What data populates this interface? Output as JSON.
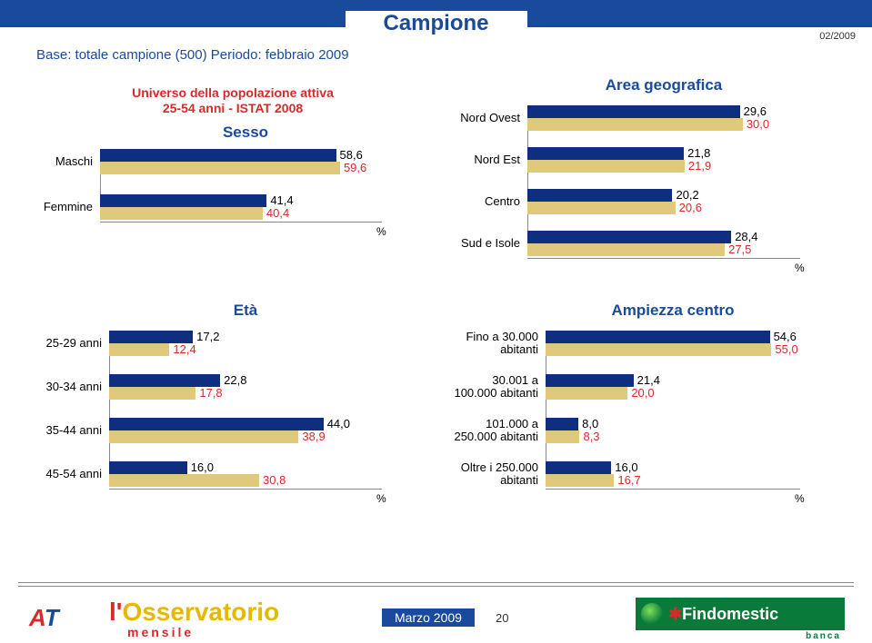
{
  "header": {
    "title": "Campione",
    "date": "02/2009",
    "base_note": "Base: totale campione (500) Periodo: febbraio 2009",
    "universo_line1": "Universo della popolazione attiva",
    "universo_line2": "25-54 anni - ISTAT 2008"
  },
  "colors": {
    "blue": "#1a4a9c",
    "red": "#d62b2b",
    "bar_primary": "#0e2f80",
    "bar_secondary": "#e0c97a"
  },
  "charts": {
    "sesso": {
      "title": "Sesso",
      "label_width": 70,
      "bars_width": 310,
      "max": 70,
      "categories": [
        {
          "label": "Maschi",
          "v1": 58.6,
          "v1_label": "58,6",
          "v2": 59.6,
          "v2_label": "59,6"
        },
        {
          "label": "Femmine",
          "v1": 41.4,
          "v1_label": "41,4",
          "v2": 40.4,
          "v2_label": "40,4"
        }
      ]
    },
    "area": {
      "title": "Area geografica",
      "label_width": 80,
      "bars_width": 300,
      "max": 38,
      "categories": [
        {
          "label": "Nord Ovest",
          "v1": 29.6,
          "v1_label": "29,6",
          "v2": 30.0,
          "v2_label": "30,0"
        },
        {
          "label": "Nord Est",
          "v1": 21.8,
          "v1_label": "21,8",
          "v2": 21.9,
          "v2_label": "21,9"
        },
        {
          "label": "Centro",
          "v1": 20.2,
          "v1_label": "20,2",
          "v2": 20.6,
          "v2_label": "20,6"
        },
        {
          "label": "Sud e Isole",
          "v1": 28.4,
          "v1_label": "28,4",
          "v2": 27.5,
          "v2_label": "27,5"
        }
      ]
    },
    "eta": {
      "title": "Età",
      "label_width": 80,
      "bars_width": 300,
      "max": 56,
      "categories": [
        {
          "label": "25-29 anni",
          "v1": 17.2,
          "v1_label": "17,2",
          "v2": 12.4,
          "v2_label": "12,4"
        },
        {
          "label": "30-34 anni",
          "v1": 22.8,
          "v1_label": "22,8",
          "v2": 17.8,
          "v2_label": "17,8"
        },
        {
          "label": "35-44 anni",
          "v1": 44.0,
          "v1_label": "44,0",
          "v2": 38.9,
          "v2_label": "38,9"
        },
        {
          "label": "45-54 anni",
          "v1": 16.0,
          "v1_label": "16,0",
          "v2": 30.8,
          "v2_label": "30,8"
        }
      ]
    },
    "ampiezza": {
      "title": "Ampiezza centro",
      "label_width": 110,
      "bars_width": 280,
      "max": 62,
      "categories": [
        {
          "label": "Fino a 30.000\nabitanti",
          "v1": 54.6,
          "v1_label": "54,6",
          "v2": 55.0,
          "v2_label": "55,0"
        },
        {
          "label": "30.001 a\n100.000 abitanti",
          "v1": 21.4,
          "v1_label": "21,4",
          "v2": 20.0,
          "v2_label": "20,0"
        },
        {
          "label": "101.000 a\n250.000 abitanti",
          "v1": 8.0,
          "v1_label": "8,0",
          "v2": 8.3,
          "v2_label": "8,3"
        },
        {
          "label": "Oltre i 250.000\nabitanti",
          "v1": 16.0,
          "v1_label": "16,0",
          "v2": 16.7,
          "v2_label": "16,7"
        }
      ]
    }
  },
  "footer": {
    "osservatorio_l": "l'",
    "osservatorio": "Osservatorio",
    "mensile": "mensile",
    "marzo": "Marzo  2009",
    "page": "20",
    "findomestic": "Findomestic",
    "banca": "banca",
    "logo_a": "A",
    "logo_t": "T"
  },
  "pct_sign": "%"
}
